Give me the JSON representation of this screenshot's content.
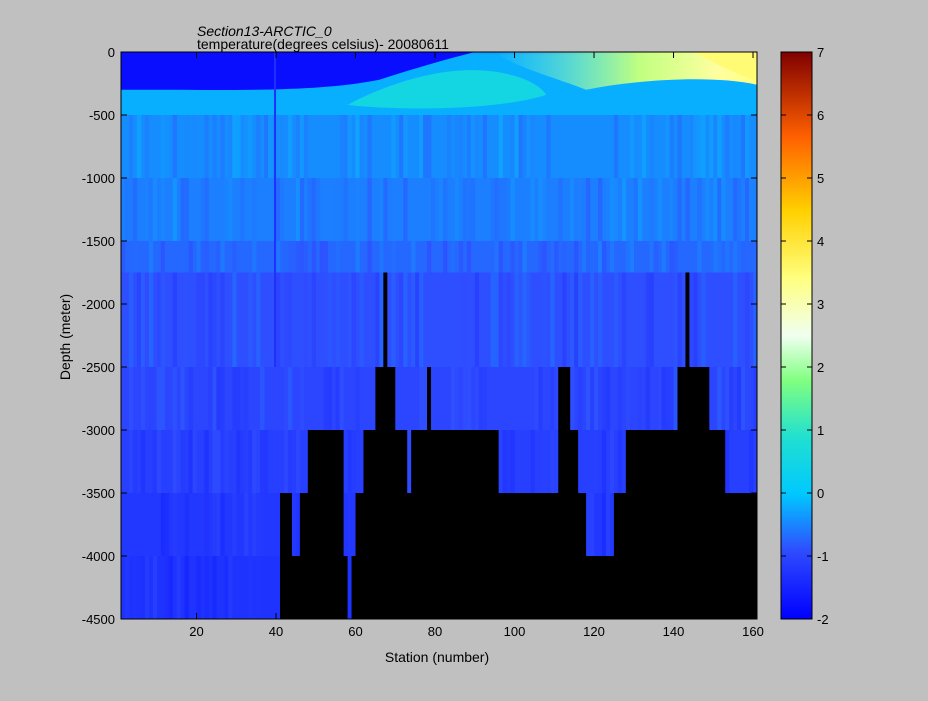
{
  "chart_data": {
    "type": "heatmap",
    "title": "Section13-ARCTIC_0",
    "subtitle": "temperature(degrees  celsius)- 20080611",
    "xlabel": "Station (number)",
    "ylabel": "Depth (meter)",
    "xlim": [
      1,
      161
    ],
    "ylim": [
      -4500,
      0
    ],
    "xticks": [
      20,
      40,
      60,
      80,
      100,
      120,
      140,
      160
    ],
    "yticks": [
      0,
      -500,
      -1000,
      -1500,
      -2000,
      -2500,
      -3000,
      -3500,
      -4000,
      -4500
    ],
    "colorbar": {
      "min": -2,
      "max": 7,
      "ticks": [
        -2,
        -1,
        0,
        1,
        2,
        3,
        4,
        5,
        6,
        7
      ],
      "colormap": "jet"
    },
    "depth_levels": [
      0,
      -500,
      -1000,
      -1500,
      -1750,
      -2500,
      -3000,
      -3500,
      -4000,
      -4500
    ],
    "temperature_profile_by_depth": [
      {
        "depth": -50,
        "station_range": [
          1,
          80
        ],
        "value": -1.7
      },
      {
        "depth": -50,
        "station_range": [
          140,
          161
        ],
        "value": 3.5
      },
      {
        "depth": -250,
        "station_range": [
          60,
          100
        ],
        "value": 0.6
      },
      {
        "depth": -500,
        "station_range": [
          1,
          161
        ],
        "value": -0.3
      },
      {
        "depth": -1000,
        "station_range": [
          1,
          161
        ],
        "value": -0.45
      },
      {
        "depth": -1500,
        "station_range": [
          1,
          161
        ],
        "value": -0.55
      },
      {
        "depth": -2000,
        "station_range": [
          1,
          161
        ],
        "value": -0.75
      },
      {
        "depth": -2750,
        "station_range": [
          1,
          161
        ],
        "value": -0.95
      },
      {
        "depth": -3250,
        "station_range": [
          1,
          161
        ],
        "value": -1.05
      },
      {
        "depth": -3750,
        "station_range": [
          1,
          161
        ],
        "value": -1.15
      },
      {
        "depth": -4250,
        "station_range": [
          1,
          161
        ],
        "value": -1.25
      }
    ],
    "seafloor_depth_by_station": [
      {
        "station": 1,
        "depth": -4500
      },
      {
        "station": 40,
        "depth": -4500
      },
      {
        "station": 41,
        "depth": -3500
      },
      {
        "station": 43,
        "depth": -3500
      },
      {
        "station": 44,
        "depth": -4000
      },
      {
        "station": 46,
        "depth": -3500
      },
      {
        "station": 48,
        "depth": -3000
      },
      {
        "station": 56,
        "depth": -3000
      },
      {
        "station": 57,
        "depth": -4000
      },
      {
        "station": 58,
        "depth": -4500
      },
      {
        "station": 59,
        "depth": -4000
      },
      {
        "station": 60,
        "depth": -3500
      },
      {
        "station": 62,
        "depth": -3000
      },
      {
        "station": 65,
        "depth": -2500
      },
      {
        "station": 67,
        "depth": -1750
      },
      {
        "station": 68,
        "depth": -2500
      },
      {
        "station": 70,
        "depth": -3000
      },
      {
        "station": 73,
        "depth": -3500
      },
      {
        "station": 74,
        "depth": -3000
      },
      {
        "station": 78,
        "depth": -2500
      },
      {
        "station": 79,
        "depth": -3000
      },
      {
        "station": 86,
        "depth": -3000
      },
      {
        "station": 94,
        "depth": -3000
      },
      {
        "station": 96,
        "depth": -3500
      },
      {
        "station": 111,
        "depth": -2500
      },
      {
        "station": 114,
        "depth": -3000
      },
      {
        "station": 116,
        "depth": -3500
      },
      {
        "station": 118,
        "depth": -4000
      },
      {
        "station": 125,
        "depth": -3500
      },
      {
        "station": 128,
        "depth": -3000
      },
      {
        "station": 141,
        "depth": -2500
      },
      {
        "station": 143,
        "depth": -1750
      },
      {
        "station": 144,
        "depth": -2500
      },
      {
        "station": 149,
        "depth": -3000
      },
      {
        "station": 153,
        "depth": -3500
      },
      {
        "station": 161,
        "depth": -3500
      }
    ],
    "grid": false,
    "legend": "none"
  }
}
